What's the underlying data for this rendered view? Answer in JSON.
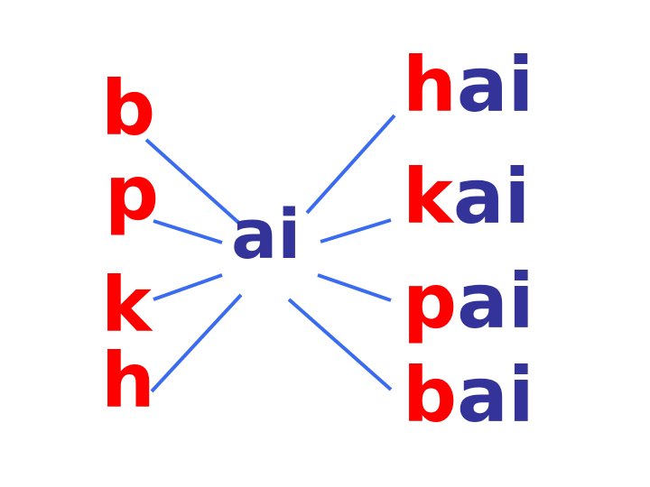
{
  "left_initials": [
    "b",
    "p",
    "k",
    "h"
  ],
  "center_final": "ai",
  "right_syllables": [
    {
      "initial": "h",
      "final": "ai"
    },
    {
      "initial": "k",
      "final": "ai"
    },
    {
      "initial": "p",
      "final": "ai"
    },
    {
      "initial": "b",
      "final": "ai"
    }
  ],
  "colors": {
    "initial": "#ff0000",
    "final": "#333399",
    "connector": "#3b6cf0"
  }
}
